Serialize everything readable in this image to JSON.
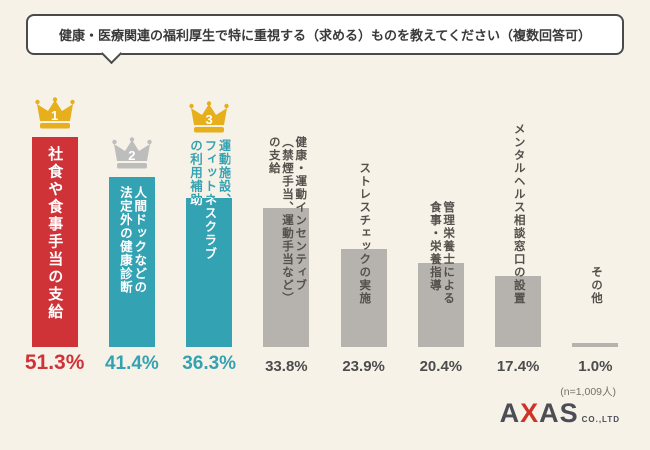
{
  "title": "健康・医療関連の福利厚生で特に重視する（求める）ものを教えてください（複数回答可）",
  "note": "(n=1,009人)",
  "logo": {
    "letters": [
      "A",
      "X",
      "A",
      "S"
    ],
    "sub": "CO.,LTD"
  },
  "chart_data": {
    "type": "bar",
    "title": "健康・医療関連の福利厚生で特に重視する（求める）もの（複数回答可）",
    "unit": "%",
    "ylim": [
      0,
      60
    ],
    "legend": "none",
    "items": [
      {
        "rank": "1",
        "label": "社食や食事手当の支給",
        "value": 51.3,
        "value_label": "51.3%",
        "bar_color": "#cf3338",
        "value_color": "#cf3338",
        "crown_color": "#e7af1c"
      },
      {
        "rank": "2",
        "label": "人間ドックなどの\n法定外の健康診断",
        "value": 41.4,
        "value_label": "41.4%",
        "bar_color": "#33a2b2",
        "value_color": "#33a2b2",
        "crown_color": "#bdbdbd"
      },
      {
        "rank": "3",
        "label": "運動施設、\nフィットネスクラブ\nの利用補助",
        "value": 36.3,
        "value_label": "36.3%",
        "bar_color": "#33a2b2",
        "value_color": "#33a2b2",
        "crown_color": "#e7af1c"
      },
      {
        "label": "健康・運動インセンティブ\n（禁煙手当、運動手当など）\nの支給",
        "value": 33.8,
        "value_label": "33.8%",
        "bar_color": "#b6b2ad",
        "value_color": "#4c4c4c"
      },
      {
        "label": "ストレスチェックの実施",
        "value": 23.9,
        "value_label": "23.9%",
        "bar_color": "#b6b2ad",
        "value_color": "#4c4c4c"
      },
      {
        "label": "管理栄養士による\n食事・栄養指導",
        "value": 20.4,
        "value_label": "20.4%",
        "bar_color": "#b6b2ad",
        "value_color": "#4c4c4c"
      },
      {
        "label": "メンタルヘルス相談窓口の設置",
        "value": 17.4,
        "value_label": "17.4%",
        "bar_color": "#b6b2ad",
        "value_color": "#4c4c4c"
      },
      {
        "label": "その他",
        "value": 1.0,
        "value_label": "1.0%",
        "bar_color": "#b6b2ad",
        "value_color": "#4c4c4c"
      }
    ]
  }
}
